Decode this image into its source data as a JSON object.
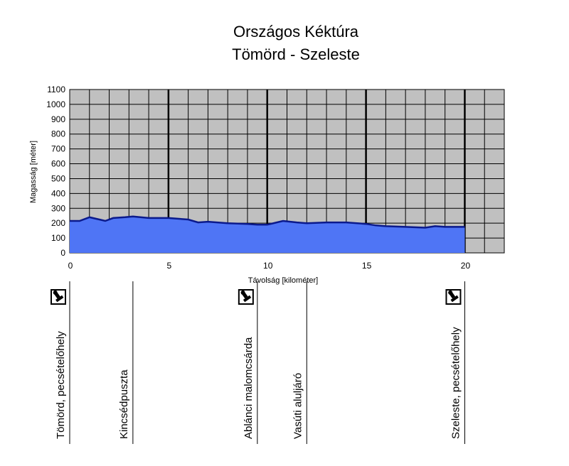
{
  "chart_data": {
    "type": "area",
    "title": "Országos Kéktúra",
    "subtitle": "Tömörd - Szeleste",
    "xlabel": "Távolság [kilométer]",
    "ylabel": "Magasság [méter]",
    "xlim": [
      0,
      22
    ],
    "ylim": [
      0,
      1100
    ],
    "x_ticks": [
      "0",
      "5",
      "10",
      "15",
      "20"
    ],
    "y_ticks": [
      "0",
      "100",
      "200",
      "300",
      "400",
      "500",
      "600",
      "700",
      "800",
      "900",
      "1000",
      "1100"
    ],
    "grid": true,
    "colors": {
      "fill": "#4f75f5",
      "line": "#0b1a8c",
      "plot_bg": "#c0c0c0",
      "grid": "#000000"
    },
    "x": [
      0,
      0.5,
      1,
      1.5,
      1.8,
      2.2,
      2.8,
      3.2,
      4,
      5,
      6,
      6.5,
      7,
      8,
      9,
      9.5,
      10,
      10.8,
      11.5,
      12,
      13,
      14,
      15,
      15.5,
      16,
      17,
      18,
      18.5,
      19,
      19.5,
      20
    ],
    "y": [
      215,
      215,
      240,
      225,
      215,
      235,
      240,
      245,
      235,
      235,
      225,
      205,
      210,
      200,
      195,
      190,
      190,
      215,
      205,
      200,
      205,
      205,
      195,
      185,
      180,
      175,
      170,
      180,
      175,
      175,
      175
    ],
    "points_of_interest": [
      {
        "km": 0,
        "label": "Tömörd, pecsételőhely",
        "stamp": true
      },
      {
        "km": 3.2,
        "label": "Kincsédpuszta",
        "stamp": false
      },
      {
        "km": 9.5,
        "label": "Ablánci malomcsárda",
        "stamp": true
      },
      {
        "km": 12,
        "label": "Vasúti aluljáró",
        "stamp": false
      },
      {
        "km": 20,
        "label": "Szeleste, pecsételőhely",
        "stamp": true
      }
    ]
  }
}
